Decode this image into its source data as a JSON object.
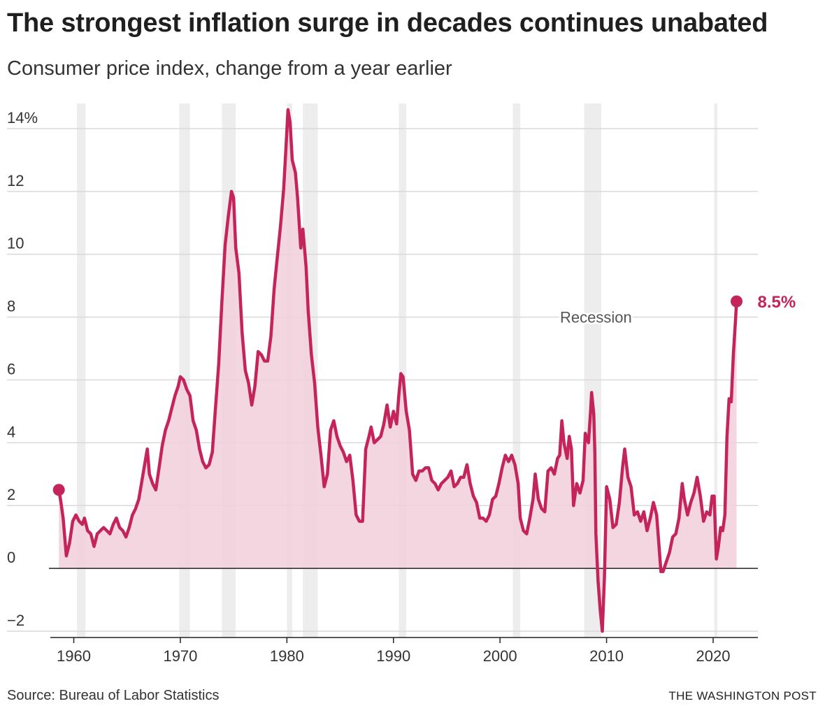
{
  "header": {
    "title": "The strongest inflation surge in decades continues unabated",
    "subtitle": "Consumer price index, change from a year earlier"
  },
  "footer": {
    "source": "Source: Bureau of Labor Statistics",
    "credit": "THE WASHINGTON POST"
  },
  "colors": {
    "line": "#c4245a",
    "area": "#f2cfda",
    "recession": "#ededed",
    "grid": "#d9d9d9",
    "axis": "#222222"
  },
  "chart_data": {
    "type": "area",
    "title": "The strongest inflation surge in decades continues unabated",
    "subtitle": "Consumer price index, change from a year earlier",
    "xlabel": "",
    "ylabel": "",
    "xlim": [
      1957.8,
      2024.2
    ],
    "ylim": [
      -2.2,
      14.8
    ],
    "x_ticks": [
      {
        "value": 1960,
        "label": "1960"
      },
      {
        "value": 1970,
        "label": "1970"
      },
      {
        "value": 1980,
        "label": "1980"
      },
      {
        "value": 1990,
        "label": "1990"
      },
      {
        "value": 2000,
        "label": "2000"
      },
      {
        "value": 2010,
        "label": "2010"
      },
      {
        "value": 2020,
        "label": "2020"
      }
    ],
    "y_ticks": [
      {
        "value": -2,
        "label": "−2"
      },
      {
        "value": 0,
        "label": "0"
      },
      {
        "value": 2,
        "label": "2"
      },
      {
        "value": 4,
        "label": "4"
      },
      {
        "value": 6,
        "label": "6"
      },
      {
        "value": 8,
        "label": "8"
      },
      {
        "value": 10,
        "label": "10"
      },
      {
        "value": 12,
        "label": "12"
      },
      {
        "value": 14,
        "label": "14%"
      }
    ],
    "grid": true,
    "recession_label": "Recession",
    "recessions": [
      [
        1960.3,
        1961.1
      ],
      [
        1969.9,
        1970.9
      ],
      [
        1973.9,
        1975.2
      ],
      [
        1980.0,
        1980.5
      ],
      [
        1981.5,
        1982.9
      ],
      [
        1990.5,
        1991.2
      ],
      [
        2001.2,
        2001.9
      ],
      [
        2007.9,
        2009.5
      ],
      [
        2020.1,
        2020.4
      ]
    ],
    "series": [
      {
        "values": [
          [
            1958.6,
            2.5
          ],
          [
            1958.8,
            2.1
          ],
          [
            1959.0,
            1.6
          ],
          [
            1959.3,
            0.4
          ],
          [
            1959.6,
            0.8
          ],
          [
            1959.9,
            1.5
          ],
          [
            1960.2,
            1.7
          ],
          [
            1960.5,
            1.5
          ],
          [
            1960.8,
            1.4
          ],
          [
            1961.0,
            1.6
          ],
          [
            1961.3,
            1.2
          ],
          [
            1961.6,
            1.1
          ],
          [
            1961.9,
            0.7
          ],
          [
            1962.2,
            1.1
          ],
          [
            1962.5,
            1.2
          ],
          [
            1962.8,
            1.3
          ],
          [
            1963.1,
            1.2
          ],
          [
            1963.4,
            1.1
          ],
          [
            1963.7,
            1.4
          ],
          [
            1964.0,
            1.6
          ],
          [
            1964.3,
            1.3
          ],
          [
            1964.6,
            1.2
          ],
          [
            1964.9,
            1.0
          ],
          [
            1965.2,
            1.3
          ],
          [
            1965.5,
            1.7
          ],
          [
            1965.8,
            1.9
          ],
          [
            1966.1,
            2.2
          ],
          [
            1966.4,
            2.8
          ],
          [
            1966.7,
            3.4
          ],
          [
            1966.9,
            3.8
          ],
          [
            1967.1,
            3.0
          ],
          [
            1967.4,
            2.7
          ],
          [
            1967.7,
            2.5
          ],
          [
            1968.0,
            3.2
          ],
          [
            1968.3,
            3.9
          ],
          [
            1968.6,
            4.4
          ],
          [
            1968.9,
            4.7
          ],
          [
            1969.2,
            5.1
          ],
          [
            1969.5,
            5.5
          ],
          [
            1969.8,
            5.8
          ],
          [
            1970.0,
            6.1
          ],
          [
            1970.3,
            6.0
          ],
          [
            1970.6,
            5.7
          ],
          [
            1970.9,
            5.5
          ],
          [
            1971.2,
            4.7
          ],
          [
            1971.5,
            4.4
          ],
          [
            1971.8,
            3.8
          ],
          [
            1972.1,
            3.4
          ],
          [
            1972.4,
            3.2
          ],
          [
            1972.7,
            3.3
          ],
          [
            1973.0,
            3.7
          ],
          [
            1973.3,
            5.1
          ],
          [
            1973.6,
            6.5
          ],
          [
            1973.9,
            8.5
          ],
          [
            1974.2,
            10.3
          ],
          [
            1974.5,
            11.2
          ],
          [
            1974.8,
            12.0
          ],
          [
            1975.0,
            11.8
          ],
          [
            1975.2,
            10.2
          ],
          [
            1975.5,
            9.4
          ],
          [
            1975.8,
            7.5
          ],
          [
            1976.1,
            6.3
          ],
          [
            1976.4,
            5.9
          ],
          [
            1976.7,
            5.2
          ],
          [
            1977.0,
            5.8
          ],
          [
            1977.3,
            6.9
          ],
          [
            1977.6,
            6.8
          ],
          [
            1977.9,
            6.6
          ],
          [
            1978.2,
            6.6
          ],
          [
            1978.5,
            7.4
          ],
          [
            1978.8,
            8.9
          ],
          [
            1979.1,
            9.9
          ],
          [
            1979.4,
            10.9
          ],
          [
            1979.7,
            12.1
          ],
          [
            1979.9,
            13.3
          ],
          [
            1980.1,
            14.6
          ],
          [
            1980.3,
            14.2
          ],
          [
            1980.5,
            13.0
          ],
          [
            1980.8,
            12.6
          ],
          [
            1981.0,
            11.8
          ],
          [
            1981.3,
            10.2
          ],
          [
            1981.5,
            10.8
          ],
          [
            1981.8,
            9.6
          ],
          [
            1982.0,
            8.2
          ],
          [
            1982.3,
            6.8
          ],
          [
            1982.6,
            5.9
          ],
          [
            1982.9,
            4.5
          ],
          [
            1983.2,
            3.6
          ],
          [
            1983.5,
            2.6
          ],
          [
            1983.8,
            3.0
          ],
          [
            1984.1,
            4.4
          ],
          [
            1984.4,
            4.7
          ],
          [
            1984.7,
            4.2
          ],
          [
            1985.0,
            3.9
          ],
          [
            1985.3,
            3.7
          ],
          [
            1985.6,
            3.4
          ],
          [
            1985.9,
            3.6
          ],
          [
            1986.2,
            2.8
          ],
          [
            1986.5,
            1.7
          ],
          [
            1986.8,
            1.5
          ],
          [
            1987.1,
            1.5
          ],
          [
            1987.4,
            3.8
          ],
          [
            1987.7,
            4.2
          ],
          [
            1987.9,
            4.5
          ],
          [
            1988.2,
            4.0
          ],
          [
            1988.5,
            4.1
          ],
          [
            1988.8,
            4.2
          ],
          [
            1989.1,
            4.6
          ],
          [
            1989.4,
            5.2
          ],
          [
            1989.7,
            4.5
          ],
          [
            1990.0,
            5.0
          ],
          [
            1990.3,
            4.6
          ],
          [
            1990.5,
            5.5
          ],
          [
            1990.7,
            6.2
          ],
          [
            1990.9,
            6.1
          ],
          [
            1991.2,
            5.0
          ],
          [
            1991.5,
            4.4
          ],
          [
            1991.8,
            3.0
          ],
          [
            1992.1,
            2.8
          ],
          [
            1992.4,
            3.1
          ],
          [
            1992.7,
            3.1
          ],
          [
            1993.0,
            3.2
          ],
          [
            1993.3,
            3.2
          ],
          [
            1993.6,
            2.8
          ],
          [
            1993.9,
            2.7
          ],
          [
            1994.2,
            2.5
          ],
          [
            1994.5,
            2.7
          ],
          [
            1994.8,
            2.8
          ],
          [
            1995.1,
            2.9
          ],
          [
            1995.4,
            3.1
          ],
          [
            1995.7,
            2.6
          ],
          [
            1996.0,
            2.7
          ],
          [
            1996.3,
            2.9
          ],
          [
            1996.6,
            2.9
          ],
          [
            1996.9,
            3.3
          ],
          [
            1997.2,
            2.7
          ],
          [
            1997.5,
            2.3
          ],
          [
            1997.8,
            2.1
          ],
          [
            1998.1,
            1.6
          ],
          [
            1998.4,
            1.6
          ],
          [
            1998.7,
            1.5
          ],
          [
            1999.0,
            1.7
          ],
          [
            1999.3,
            2.2
          ],
          [
            1999.6,
            2.3
          ],
          [
            1999.9,
            2.7
          ],
          [
            2000.2,
            3.2
          ],
          [
            2000.5,
            3.6
          ],
          [
            2000.8,
            3.4
          ],
          [
            2001.1,
            3.6
          ],
          [
            2001.4,
            3.3
          ],
          [
            2001.7,
            2.7
          ],
          [
            2001.9,
            1.6
          ],
          [
            2002.2,
            1.2
          ],
          [
            2002.5,
            1.1
          ],
          [
            2002.8,
            1.6
          ],
          [
            2003.1,
            2.2
          ],
          [
            2003.3,
            3.0
          ],
          [
            2003.6,
            2.2
          ],
          [
            2003.9,
            1.9
          ],
          [
            2004.2,
            1.8
          ],
          [
            2004.5,
            3.1
          ],
          [
            2004.8,
            3.2
          ],
          [
            2005.1,
            3.0
          ],
          [
            2005.4,
            3.5
          ],
          [
            2005.6,
            3.6
          ],
          [
            2005.8,
            4.7
          ],
          [
            2006.0,
            4.0
          ],
          [
            2006.3,
            3.5
          ],
          [
            2006.5,
            4.2
          ],
          [
            2006.7,
            3.8
          ],
          [
            2006.9,
            2.0
          ],
          [
            2007.2,
            2.7
          ],
          [
            2007.5,
            2.4
          ],
          [
            2007.8,
            2.8
          ],
          [
            2008.0,
            4.3
          ],
          [
            2008.3,
            4.0
          ],
          [
            2008.5,
            5.0
          ],
          [
            2008.6,
            5.6
          ],
          [
            2008.8,
            4.9
          ],
          [
            2008.9,
            3.7
          ],
          [
            2009.0,
            1.1
          ],
          [
            2009.2,
            -0.4
          ],
          [
            2009.4,
            -1.3
          ],
          [
            2009.6,
            -2.0
          ],
          [
            2009.8,
            -0.3
          ],
          [
            2010.0,
            2.6
          ],
          [
            2010.3,
            2.2
          ],
          [
            2010.6,
            1.3
          ],
          [
            2010.9,
            1.4
          ],
          [
            2011.2,
            2.1
          ],
          [
            2011.5,
            3.2
          ],
          [
            2011.7,
            3.8
          ],
          [
            2012.0,
            2.9
          ],
          [
            2012.3,
            2.6
          ],
          [
            2012.6,
            1.7
          ],
          [
            2012.9,
            1.8
          ],
          [
            2013.2,
            1.5
          ],
          [
            2013.5,
            1.8
          ],
          [
            2013.8,
            1.2
          ],
          [
            2014.1,
            1.6
          ],
          [
            2014.4,
            2.1
          ],
          [
            2014.7,
            1.7
          ],
          [
            2014.9,
            0.8
          ],
          [
            2015.1,
            -0.1
          ],
          [
            2015.3,
            -0.1
          ],
          [
            2015.6,
            0.2
          ],
          [
            2015.9,
            0.5
          ],
          [
            2016.2,
            1.0
          ],
          [
            2016.5,
            1.1
          ],
          [
            2016.8,
            1.6
          ],
          [
            2017.1,
            2.7
          ],
          [
            2017.3,
            2.2
          ],
          [
            2017.6,
            1.7
          ],
          [
            2017.9,
            2.1
          ],
          [
            2018.2,
            2.4
          ],
          [
            2018.5,
            2.9
          ],
          [
            2018.8,
            2.3
          ],
          [
            2019.1,
            1.5
          ],
          [
            2019.4,
            1.8
          ],
          [
            2019.7,
            1.7
          ],
          [
            2019.9,
            2.3
          ],
          [
            2020.1,
            2.3
          ],
          [
            2020.3,
            0.3
          ],
          [
            2020.5,
            0.7
          ],
          [
            2020.7,
            1.3
          ],
          [
            2020.9,
            1.2
          ],
          [
            2021.1,
            1.7
          ],
          [
            2021.3,
            4.2
          ],
          [
            2021.5,
            5.4
          ],
          [
            2021.7,
            5.3
          ],
          [
            2021.9,
            6.8
          ],
          [
            2022.1,
            7.9
          ],
          [
            2022.2,
            8.5
          ]
        ],
        "end_label": "8.5%"
      }
    ]
  }
}
